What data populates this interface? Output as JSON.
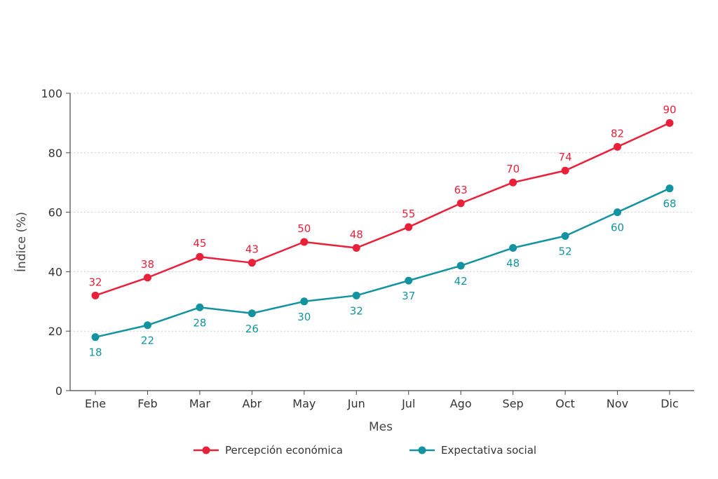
{
  "chart_data": {
    "type": "line",
    "title": "",
    "xlabel": "Mes",
    "ylabel": "Índice (%)",
    "categories": [
      "Ene",
      "Feb",
      "Mar",
      "Abr",
      "May",
      "Jun",
      "Jul",
      "Ago",
      "Sep",
      "Oct",
      "Nov",
      "Dic"
    ],
    "ylim": [
      0,
      100
    ],
    "yticks": [
      0,
      20,
      40,
      60,
      80,
      100
    ],
    "grid": true,
    "legend_position": "bottom",
    "series": [
      {
        "name": "Percepción económica",
        "color": "#e8203a",
        "values": [
          32,
          38,
          45,
          43,
          50,
          48,
          55,
          63,
          70,
          74,
          82,
          90
        ],
        "label_position": "above"
      },
      {
        "name": "Expectativa social",
        "color": "#13939f",
        "values": [
          18,
          22,
          28,
          26,
          30,
          32,
          37,
          42,
          48,
          52,
          60,
          68
        ],
        "label_position": "below"
      }
    ]
  }
}
